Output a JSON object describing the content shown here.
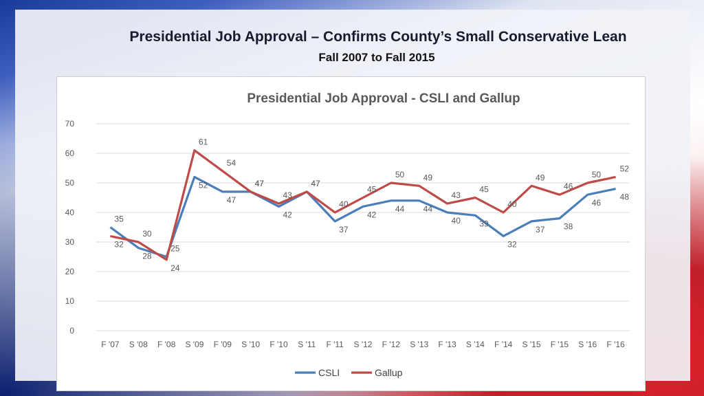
{
  "slide": {
    "title": "Presidential Job Approval – Confirms County’s Small Conservative Lean",
    "subtitle": "Fall 2007 to Fall 2015"
  },
  "chart_data": {
    "type": "line",
    "title": "Presidential Job Approval - CSLI and Gallup",
    "categories": [
      "F '07",
      "S '08",
      "F '08",
      "S '09",
      "F '09",
      "S '10",
      "F '10",
      "S '11",
      "F '11",
      "S '12",
      "F '12",
      "S '13",
      "F '13",
      "S '14",
      "F '14",
      "S '15",
      "F '15",
      "S '16",
      "F '16"
    ],
    "series": [
      {
        "name": "CSLI",
        "color": "#4a7ebb",
        "values": [
          35,
          28,
          25,
          52,
          47,
          47,
          42,
          47,
          37,
          42,
          44,
          44,
          40,
          39,
          32,
          37,
          38,
          46,
          48
        ]
      },
      {
        "name": "Gallup",
        "color": "#be4b48",
        "values": [
          32,
          30,
          24,
          61,
          54,
          47,
          43,
          47,
          40,
          45,
          50,
          49,
          43,
          45,
          40,
          49,
          46,
          50,
          52
        ]
      }
    ],
    "ylim": [
      0,
      70
    ],
    "yticks": [
      0,
      10,
      20,
      30,
      40,
      50,
      60,
      70
    ],
    "grid": true,
    "legend_position": "bottom"
  }
}
